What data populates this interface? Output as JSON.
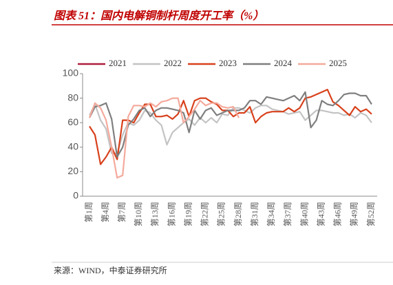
{
  "chart_data": {
    "type": "line",
    "title": "图表 51：国内电解铜制杆周度开工率（%）",
    "source": "来源：WIND，中泰证券研究所",
    "categories": [
      "第1周",
      null,
      null,
      "第4周",
      null,
      null,
      "第7周",
      null,
      null,
      "第10周",
      null,
      null,
      "第13周",
      null,
      null,
      "第16周",
      null,
      null,
      "第19周",
      null,
      null,
      "第22周",
      null,
      null,
      "第25周",
      null,
      null,
      "第28周",
      null,
      null,
      "第31周",
      null,
      null,
      "第34周",
      null,
      null,
      "第37周",
      null,
      null,
      "第40周",
      null,
      null,
      "第43周",
      null,
      null,
      "第46周",
      null,
      null,
      "第49周",
      null,
      null,
      "第52周"
    ],
    "ylim": [
      0,
      100
    ],
    "yticks": [
      0,
      20,
      40,
      60,
      80,
      100
    ],
    "grid": false,
    "legend": "top",
    "series": [
      {
        "name": "2021",
        "color": "#b01c3c",
        "values": [
          null,
          null,
          null,
          null,
          null,
          null,
          null,
          null,
          null,
          null,
          null,
          null,
          null,
          null,
          null,
          null,
          null,
          null,
          null,
          null,
          null,
          null,
          null,
          null,
          null,
          null,
          null,
          null,
          null,
          null,
          null,
          null,
          null,
          null,
          null,
          null,
          null,
          null,
          null,
          null,
          null,
          null,
          null,
          null,
          null,
          null,
          null,
          null,
          null,
          null,
          null,
          null
        ]
      },
      {
        "name": "2022",
        "color": "#c3c3c3",
        "values": [
          66,
          75,
          62,
          55,
          35,
          35,
          50,
          60,
          58,
          62,
          70,
          68,
          62,
          58,
          42,
          52,
          56,
          60,
          63,
          58,
          64,
          60,
          64,
          60,
          67,
          66,
          72,
          72,
          70,
          68,
          72,
          74,
          74,
          71,
          70,
          69,
          67,
          68,
          69,
          62,
          66,
          70,
          70,
          69,
          68,
          68,
          66,
          67,
          64,
          68,
          66,
          60
        ]
      },
      {
        "name": "2023",
        "color": "#d8401b",
        "values": [
          57,
          50,
          26,
          32,
          40,
          30,
          62,
          62,
          60,
          68,
          75,
          75,
          65,
          65,
          66,
          63,
          67,
          78,
          65,
          78,
          80,
          80,
          77,
          75,
          70,
          70,
          65,
          68,
          68,
          73,
          60,
          65,
          68,
          69,
          69,
          69,
          72,
          69,
          72,
          80,
          81,
          83,
          85,
          87,
          77,
          74,
          70,
          66,
          73,
          69,
          71,
          67
        ]
      },
      {
        "name": "2024",
        "color": "#7f7f7f",
        "values": [
          64,
          73,
          74,
          76,
          63,
          32,
          40,
          58,
          63,
          70,
          72,
          65,
          70,
          72,
          72,
          71,
          70,
          68,
          52,
          70,
          63,
          70,
          72,
          66,
          68,
          70,
          70,
          70,
          72,
          78,
          78,
          75,
          81,
          80,
          79,
          78,
          80,
          82,
          78,
          85,
          56,
          62,
          78,
          75,
          74,
          78,
          83,
          84,
          84,
          82,
          82,
          75
        ]
      },
      {
        "name": "2025",
        "color": "#f4a99b",
        "values": [
          64,
          76,
          72,
          62,
          40,
          15,
          17,
          65,
          74,
          74,
          73,
          76,
          73,
          77,
          78,
          80,
          80,
          60,
          65,
          71,
          78,
          74,
          76,
          76,
          73,
          72,
          73,
          64,
          null,
          null,
          null,
          null,
          null,
          null,
          null,
          null,
          null,
          null,
          null,
          null,
          null,
          null,
          null,
          null,
          null,
          null,
          null,
          null,
          null,
          null,
          null,
          null
        ]
      }
    ]
  }
}
